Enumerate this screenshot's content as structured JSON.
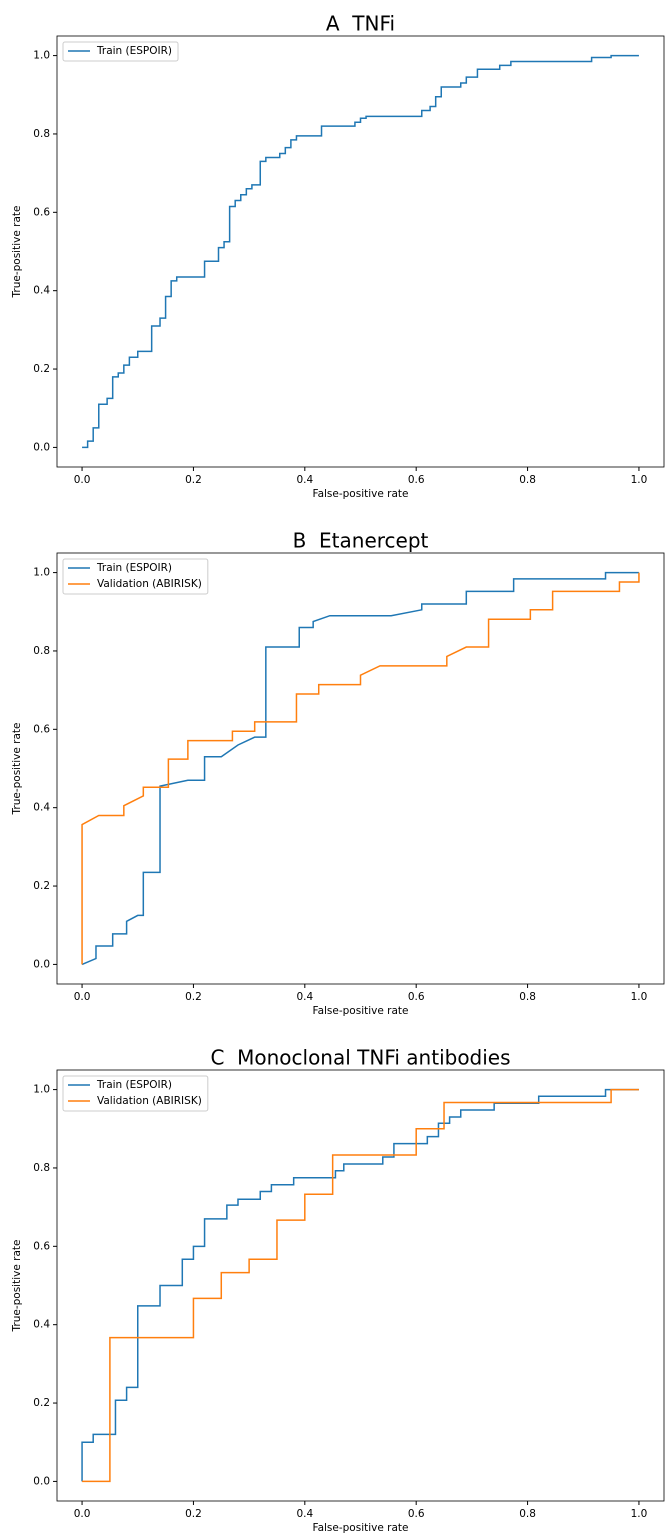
{
  "chart_data": [
    {
      "type": "line",
      "title": "A  TNFi",
      "x_label": "False-positive rate",
      "y_label": "True-positive rate",
      "xlim": [
        -0.045,
        1.045
      ],
      "ylim": [
        -0.05,
        1.05
      ],
      "xticks": [
        {
          "value": 0,
          "label": "0.0"
        },
        0.2,
        0.4,
        0.6,
        0.8,
        {
          "value": 1,
          "label": "1.0"
        }
      ],
      "yticks": [
        {
          "value": 0,
          "label": "0.0"
        },
        0.2,
        0.4,
        0.6,
        0.8,
        {
          "value": 1,
          "label": "1.0"
        }
      ],
      "grid": false,
      "legend": "upper left",
      "series": [
        {
          "name": "Train (ESPOIR)",
          "color": "#1f77b4",
          "x": [
            0,
            0.01,
            0.01,
            0.02,
            0.02,
            0.03,
            0.03,
            0.045,
            0.045,
            0.055,
            0.055,
            0.065,
            0.065,
            0.075,
            0.075,
            0.085,
            0.085,
            0.1,
            0.1,
            0.125,
            0.125,
            0.14,
            0.14,
            0.15,
            0.15,
            0.16,
            0.16,
            0.17,
            0.17,
            0.22,
            0.22,
            0.245,
            0.245,
            0.255,
            0.255,
            0.265,
            0.265,
            0.275,
            0.275,
            0.285,
            0.285,
            0.295,
            0.295,
            0.305,
            0.305,
            0.32,
            0.32,
            0.33,
            0.33,
            0.355,
            0.355,
            0.365,
            0.365,
            0.375,
            0.375,
            0.385,
            0.385,
            0.43,
            0.43,
            0.49,
            0.49,
            0.5,
            0.5,
            0.51,
            0.51,
            0.61,
            0.61,
            0.625,
            0.625,
            0.635,
            0.635,
            0.645,
            0.645,
            0.68,
            0.68,
            0.69,
            0.69,
            0.71,
            0.71,
            0.75,
            0.75,
            0.77,
            0.77,
            0.915,
            0.915,
            0.95,
            0.95,
            1.0
          ],
          "values": [
            0,
            0,
            0.016,
            0.016,
            0.05,
            0.05,
            0.11,
            0.11,
            0.125,
            0.125,
            0.18,
            0.18,
            0.19,
            0.19,
            0.21,
            0.21,
            0.23,
            0.23,
            0.245,
            0.245,
            0.31,
            0.31,
            0.33,
            0.33,
            0.385,
            0.385,
            0.425,
            0.425,
            0.435,
            0.435,
            0.475,
            0.475,
            0.51,
            0.51,
            0.525,
            0.525,
            0.615,
            0.615,
            0.63,
            0.63,
            0.645,
            0.645,
            0.66,
            0.66,
            0.67,
            0.67,
            0.73,
            0.73,
            0.74,
            0.74,
            0.75,
            0.75,
            0.765,
            0.765,
            0.785,
            0.785,
            0.795,
            0.795,
            0.82,
            0.82,
            0.83,
            0.83,
            0.84,
            0.84,
            0.845,
            0.845,
            0.86,
            0.86,
            0.87,
            0.87,
            0.895,
            0.895,
            0.92,
            0.92,
            0.93,
            0.93,
            0.945,
            0.945,
            0.965,
            0.965,
            0.975,
            0.975,
            0.985,
            0.985,
            0.995,
            0.995,
            1.0,
            1.0
          ]
        }
      ]
    },
    {
      "type": "line",
      "title": "B  Etanercept",
      "x_label": "False-positive rate",
      "y_label": "True-positive rate",
      "xlim": [
        -0.045,
        1.045
      ],
      "ylim": [
        -0.05,
        1.05
      ],
      "xticks": [
        {
          "value": 0,
          "label": "0.0"
        },
        0.2,
        0.4,
        0.6,
        0.8,
        {
          "value": 1,
          "label": "1.0"
        }
      ],
      "yticks": [
        {
          "value": 0,
          "label": "0.0"
        },
        0.2,
        0.4,
        0.6,
        0.8,
        {
          "value": 1,
          "label": "1.0"
        }
      ],
      "grid": false,
      "legend": "upper left",
      "series": [
        {
          "name": "Train (ESPOIR)",
          "color": "#1f77b4",
          "x": [
            0,
            0.025,
            0.025,
            0.055,
            0.055,
            0.08,
            0.08,
            0.1,
            0.11,
            0.11,
            0.14,
            0.14,
            0.19,
            0.22,
            0.22,
            0.25,
            0.28,
            0.31,
            0.33,
            0.33,
            0.39,
            0.39,
            0.415,
            0.415,
            0.445,
            0.555,
            0.61,
            0.61,
            0.69,
            0.69,
            0.775,
            0.775,
            0.94,
            0.94,
            1.0
          ],
          "values": [
            0,
            0.015,
            0.047,
            0.047,
            0.078,
            0.078,
            0.11,
            0.125,
            0.125,
            0.235,
            0.235,
            0.455,
            0.47,
            0.47,
            0.53,
            0.53,
            0.56,
            0.58,
            0.58,
            0.81,
            0.81,
            0.86,
            0.86,
            0.875,
            0.89,
            0.89,
            0.905,
            0.92,
            0.92,
            0.952,
            0.952,
            0.984,
            0.984,
            1.0,
            1.0
          ]
        },
        {
          "name": "Validation (ABIRISK)",
          "color": "#ff7f0e",
          "x": [
            0,
            0,
            0.03,
            0.075,
            0.075,
            0.11,
            0.11,
            0.155,
            0.155,
            0.19,
            0.19,
            0.27,
            0.27,
            0.31,
            0.31,
            0.385,
            0.385,
            0.425,
            0.425,
            0.5,
            0.5,
            0.535,
            0.655,
            0.655,
            0.69,
            0.73,
            0.73,
            0.805,
            0.805,
            0.845,
            0.845,
            0.965,
            0.965,
            1.0,
            1.0
          ],
          "values": [
            0,
            0.357,
            0.38,
            0.38,
            0.405,
            0.43,
            0.452,
            0.452,
            0.524,
            0.524,
            0.571,
            0.571,
            0.595,
            0.595,
            0.619,
            0.619,
            0.69,
            0.69,
            0.714,
            0.714,
            0.738,
            0.762,
            0.762,
            0.786,
            0.81,
            0.81,
            0.881,
            0.881,
            0.905,
            0.905,
            0.952,
            0.952,
            0.976,
            0.976,
            1.0
          ]
        }
      ]
    },
    {
      "type": "line",
      "title": "C  Monoclonal TNFi antibodies",
      "x_label": "False-positive rate",
      "y_label": "True-positive rate",
      "xlim": [
        -0.045,
        1.045
      ],
      "ylim": [
        -0.05,
        1.05
      ],
      "xticks": [
        {
          "value": 0,
          "label": "0.0"
        },
        0.2,
        0.4,
        0.6,
        0.8,
        {
          "value": 1,
          "label": "1.0"
        }
      ],
      "yticks": [
        {
          "value": 0,
          "label": "0.0"
        },
        0.2,
        0.4,
        0.6,
        0.8,
        {
          "value": 1,
          "label": "1.0"
        }
      ],
      "grid": false,
      "legend": "upper left",
      "series": [
        {
          "name": "Train (ESPOIR)",
          "color": "#1f77b4",
          "x": [
            0,
            0,
            0.02,
            0.02,
            0.06,
            0.06,
            0.08,
            0.08,
            0.1,
            0.1,
            0.14,
            0.14,
            0.18,
            0.18,
            0.2,
            0.2,
            0.22,
            0.22,
            0.26,
            0.26,
            0.28,
            0.28,
            0.32,
            0.32,
            0.34,
            0.34,
            0.38,
            0.38,
            0.455,
            0.455,
            0.47,
            0.47,
            0.54,
            0.54,
            0.56,
            0.56,
            0.62,
            0.62,
            0.64,
            0.64,
            0.66,
            0.66,
            0.68,
            0.68,
            0.74,
            0.74,
            0.82,
            0.82,
            0.94,
            0.94,
            1.0
          ],
          "values": [
            0,
            0.1,
            0.1,
            0.12,
            0.12,
            0.207,
            0.207,
            0.24,
            0.24,
            0.448,
            0.448,
            0.5,
            0.5,
            0.567,
            0.567,
            0.6,
            0.6,
            0.67,
            0.67,
            0.705,
            0.705,
            0.72,
            0.72,
            0.74,
            0.74,
            0.757,
            0.757,
            0.775,
            0.775,
            0.793,
            0.793,
            0.81,
            0.81,
            0.828,
            0.828,
            0.862,
            0.862,
            0.88,
            0.88,
            0.914,
            0.914,
            0.93,
            0.93,
            0.948,
            0.948,
            0.965,
            0.965,
            0.983,
            0.983,
            1.0,
            1.0
          ]
        },
        {
          "name": "Validation (ABIRISK)",
          "color": "#ff7f0e",
          "x": [
            0,
            0.05,
            0.05,
            0.2,
            0.2,
            0.25,
            0.25,
            0.3,
            0.3,
            0.35,
            0.35,
            0.4,
            0.4,
            0.45,
            0.45,
            0.6,
            0.6,
            0.65,
            0.65,
            0.95,
            0.95,
            1.0
          ],
          "values": [
            0,
            0,
            0.367,
            0.367,
            0.467,
            0.467,
            0.533,
            0.533,
            0.567,
            0.567,
            0.667,
            0.667,
            0.733,
            0.733,
            0.833,
            0.833,
            0.9,
            0.9,
            0.967,
            0.967,
            1.0,
            1.0
          ]
        }
      ]
    }
  ]
}
